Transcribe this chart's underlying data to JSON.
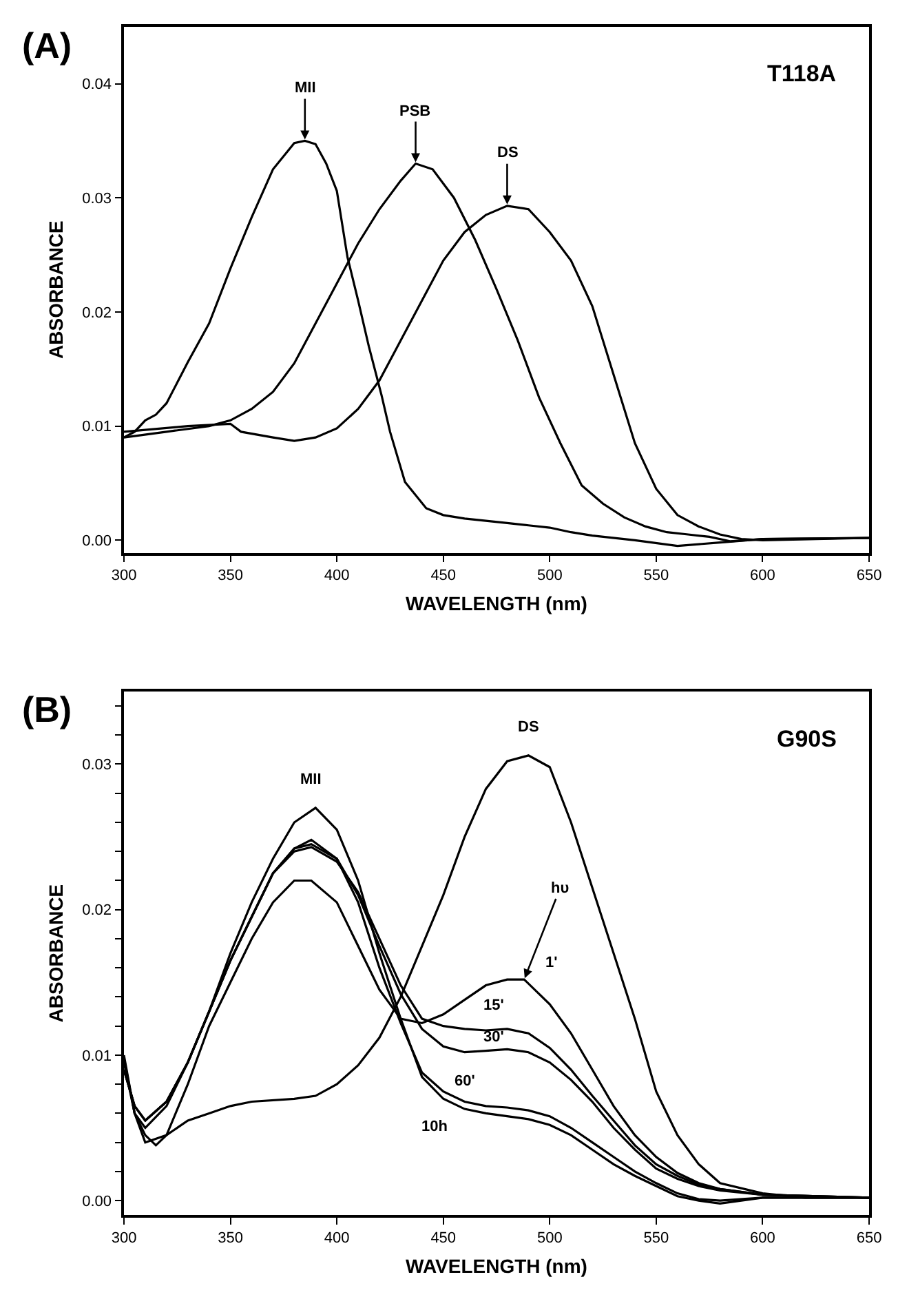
{
  "chart_data": [
    {
      "type": "line",
      "title": "(A)",
      "xlabel": "WAVELENGTH (nm)",
      "ylabel": "ABSORBANCE",
      "xlim": [
        300,
        650
      ],
      "ylim": [
        -0.0011,
        0.045
      ],
      "xticks": [
        300,
        350,
        400,
        450,
        500,
        550,
        600,
        650
      ],
      "yticks": [
        {
          "value": 0,
          "label": "0.00"
        },
        0.01,
        0.02,
        0.03,
        0.04
      ],
      "marker": "none",
      "line_style": "solid",
      "series": [
        {
          "color": "#000000",
          "x": [
            300,
            305,
            310,
            315,
            320,
            330,
            340,
            350,
            360,
            370,
            380,
            385,
            390,
            395,
            400,
            405,
            410,
            415,
            421,
            425,
            432,
            442,
            450,
            460,
            470,
            480,
            490,
            500,
            510,
            520,
            540,
            560,
            580,
            600,
            650
          ],
          "values": [
            0.009,
            0.0095,
            0.0105,
            0.011,
            0.012,
            0.0156,
            0.019,
            0.0238,
            0.0283,
            0.0325,
            0.0348,
            0.035,
            0.0347,
            0.033,
            0.0306,
            0.0248,
            0.021,
            0.017,
            0.0127,
            0.0095,
            0.0051,
            0.0028,
            0.0022,
            0.0019,
            0.0017,
            0.0015,
            0.0013,
            0.0011,
            0.0007,
            0.0004,
            0.0,
            -0.0005,
            -0.0002,
            0.0001,
            0.0002
          ]
        },
        {
          "color": "#000000",
          "x": [
            300,
            320,
            340,
            350,
            360,
            370,
            380,
            390,
            400,
            410,
            420,
            430,
            437,
            445,
            455,
            465,
            475,
            485,
            495,
            505,
            515,
            525,
            535,
            545,
            555,
            565,
            575,
            585,
            600,
            650
          ],
          "values": [
            0.009,
            0.0095,
            0.01,
            0.0105,
            0.0115,
            0.013,
            0.0155,
            0.019,
            0.0225,
            0.026,
            0.029,
            0.0315,
            0.033,
            0.0325,
            0.03,
            0.0263,
            0.022,
            0.0175,
            0.0125,
            0.0085,
            0.0048,
            0.0032,
            0.002,
            0.0012,
            0.0007,
            0.0005,
            0.0003,
            -0.0001,
            0.0001,
            0.0002
          ]
        },
        {
          "color": "#000000",
          "x": [
            300,
            330,
            350,
            355,
            370,
            380,
            390,
            400,
            410,
            420,
            430,
            440,
            450,
            460,
            470,
            480,
            490,
            500,
            510,
            520,
            530,
            540,
            550,
            560,
            570,
            580,
            590,
            600,
            650
          ],
          "values": [
            0.0095,
            0.01,
            0.0102,
            0.0095,
            0.009,
            0.0087,
            0.009,
            0.0098,
            0.0115,
            0.014,
            0.0175,
            0.021,
            0.0245,
            0.027,
            0.0285,
            0.0293,
            0.029,
            0.027,
            0.0245,
            0.0205,
            0.0145,
            0.0085,
            0.0045,
            0.0022,
            0.0012,
            0.0005,
            0.0001,
            0.0,
            0.0002
          ]
        }
      ],
      "annotations": [
        "T118A",
        {
          "text": "MII",
          "x": 385,
          "y": 0.035
        },
        {
          "text": "PSB",
          "x": 437,
          "y": 0.033
        },
        {
          "text": "DS",
          "x": 480,
          "y": 0.0293
        }
      ]
    },
    {
      "type": "line",
      "title": "(B)",
      "xlabel": "WAVELENGTH (nm)",
      "ylabel": "ABSORBANCE",
      "xlim": [
        300,
        650
      ],
      "ylim": [
        -0.001,
        0.035
      ],
      "xticks": [
        300,
        350,
        400,
        450,
        500,
        550,
        600,
        650
      ],
      "yticks": [
        {
          "value": 0,
          "label": "0.00"
        },
        {
          "value": 0.002,
          "label": null
        },
        {
          "value": 0.004,
          "label": null
        },
        {
          "value": 0.006,
          "label": null
        },
        {
          "value": 0.008,
          "label": null
        },
        0.01,
        {
          "value": 0.012,
          "label": null
        },
        {
          "value": 0.014,
          "label": null
        },
        {
          "value": 0.016,
          "label": null
        },
        {
          "value": 0.018,
          "label": null
        },
        0.02,
        {
          "value": 0.022,
          "label": null
        },
        {
          "value": 0.024,
          "label": null
        },
        {
          "value": 0.026,
          "label": null
        },
        {
          "value": 0.028,
          "label": null
        },
        0.03,
        {
          "value": 0.032,
          "label": null
        },
        {
          "value": 0.034,
          "label": null
        }
      ],
      "marker": "none",
      "line_style": "solid",
      "series": [
        {
          "color": "#000000",
          "x": [
            300,
            305,
            310,
            320,
            330,
            340,
            350,
            360,
            380,
            390,
            400,
            410,
            420,
            430,
            440,
            450,
            460,
            470,
            480,
            490,
            500,
            510,
            520,
            530,
            540,
            550,
            560,
            570,
            580,
            600,
            620,
            650
          ],
          "values": [
            0.0098,
            0.006,
            0.004,
            0.0045,
            0.0055,
            0.006,
            0.0065,
            0.0068,
            0.007,
            0.0072,
            0.008,
            0.0093,
            0.0112,
            0.014,
            0.0175,
            0.021,
            0.025,
            0.0283,
            0.0302,
            0.0306,
            0.0298,
            0.026,
            0.0215,
            0.017,
            0.0125,
            0.0075,
            0.0045,
            0.0025,
            0.0012,
            0.0005,
            0.0002,
            0.0002
          ]
        },
        {
          "color": "#000000",
          "x": [
            300,
            305,
            310,
            315,
            320,
            330,
            340,
            350,
            360,
            370,
            380,
            388,
            400,
            410,
            420,
            430,
            440,
            450,
            460,
            470,
            480,
            488,
            500,
            510,
            520,
            530,
            540,
            550,
            560,
            570,
            580,
            600,
            650
          ],
          "values": [
            0.0095,
            0.006,
            0.0045,
            0.0038,
            0.0045,
            0.008,
            0.012,
            0.015,
            0.018,
            0.0205,
            0.022,
            0.022,
            0.0205,
            0.0175,
            0.0145,
            0.0125,
            0.0122,
            0.0128,
            0.0138,
            0.0148,
            0.0152,
            0.0152,
            0.0135,
            0.0115,
            0.009,
            0.0065,
            0.0045,
            0.003,
            0.0019,
            0.0012,
            0.0008,
            0.0004,
            0.0002
          ]
        },
        {
          "color": "#000000",
          "x": [
            300,
            305,
            310,
            320,
            330,
            340,
            350,
            360,
            370,
            380,
            388,
            400,
            410,
            420,
            430,
            440,
            450,
            460,
            470,
            480,
            490,
            500,
            510,
            520,
            530,
            540,
            550,
            560,
            570,
            580,
            600,
            650
          ],
          "values": [
            0.009,
            0.0065,
            0.0055,
            0.0068,
            0.0095,
            0.013,
            0.0165,
            0.0195,
            0.0225,
            0.024,
            0.0243,
            0.0233,
            0.0212,
            0.018,
            0.0148,
            0.0125,
            0.012,
            0.0118,
            0.0117,
            0.0118,
            0.0115,
            0.0105,
            0.009,
            0.0072,
            0.0055,
            0.0038,
            0.0025,
            0.0017,
            0.0011,
            0.0008,
            0.0004,
            0.0002
          ]
        },
        {
          "color": "#000000",
          "x": [
            300,
            305,
            310,
            320,
            330,
            340,
            350,
            360,
            370,
            380,
            388,
            400,
            410,
            420,
            430,
            440,
            450,
            460,
            470,
            480,
            490,
            500,
            510,
            520,
            530,
            540,
            550,
            560,
            570,
            580,
            600,
            650
          ],
          "values": [
            0.009,
            0.0065,
            0.0055,
            0.0068,
            0.0095,
            0.013,
            0.0165,
            0.0195,
            0.0225,
            0.0242,
            0.0245,
            0.0235,
            0.021,
            0.0175,
            0.0142,
            0.0118,
            0.0106,
            0.0102,
            0.0103,
            0.0104,
            0.0102,
            0.0095,
            0.0083,
            0.0068,
            0.005,
            0.0035,
            0.0022,
            0.0015,
            0.001,
            0.0007,
            0.0004,
            0.0002
          ]
        },
        {
          "color": "#000000",
          "x": [
            300,
            305,
            310,
            320,
            330,
            340,
            350,
            360,
            370,
            380,
            388,
            400,
            410,
            420,
            430,
            440,
            450,
            460,
            470,
            480,
            490,
            500,
            510,
            520,
            530,
            540,
            550,
            560,
            570,
            580,
            600,
            650
          ],
          "values": [
            0.009,
            0.0065,
            0.0055,
            0.0068,
            0.0095,
            0.013,
            0.0165,
            0.0195,
            0.0225,
            0.0242,
            0.0248,
            0.0235,
            0.0205,
            0.016,
            0.0122,
            0.0088,
            0.0075,
            0.0068,
            0.0065,
            0.0064,
            0.0062,
            0.0058,
            0.005,
            0.004,
            0.003,
            0.002,
            0.0012,
            0.0005,
            0.0001,
            0.0,
            0.0002,
            0.0002
          ]
        },
        {
          "color": "#000000",
          "x": [
            300,
            305,
            310,
            320,
            330,
            340,
            350,
            360,
            370,
            380,
            390,
            400,
            410,
            420,
            430,
            440,
            450,
            460,
            470,
            480,
            490,
            500,
            510,
            520,
            530,
            540,
            550,
            560,
            570,
            580,
            600,
            650
          ],
          "values": [
            0.01,
            0.006,
            0.005,
            0.0065,
            0.0095,
            0.013,
            0.017,
            0.0205,
            0.0235,
            0.026,
            0.027,
            0.0255,
            0.022,
            0.017,
            0.0125,
            0.0085,
            0.007,
            0.0063,
            0.006,
            0.0058,
            0.0056,
            0.0052,
            0.0045,
            0.0035,
            0.0025,
            0.0017,
            0.001,
            0.0003,
            0.0,
            -0.0002,
            0.0002,
            0.0002
          ]
        }
      ],
      "annotations": [
        "G90S",
        {
          "text": "DS",
          "x": 490,
          "y": 0.0306
        },
        {
          "text": "MII",
          "x": 390,
          "y": 0.027
        },
        {
          "text": "hυ",
          "x": 488,
          "y": 0.0152
        },
        {
          "text": "1'",
          "x": 488,
          "y": 0.0152
        },
        {
          "text": "15'",
          "x": 480,
          "y": 0.0118
        },
        {
          "text": "30'",
          "x": 480,
          "y": 0.0104
        },
        {
          "text": "60'",
          "x": 460,
          "y": 0.0068
        },
        {
          "text": "10h",
          "x": 450,
          "y": 0.007
        }
      ]
    }
  ]
}
